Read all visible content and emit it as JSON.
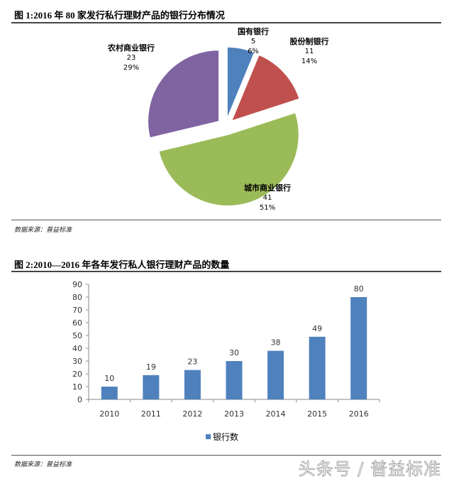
{
  "figure1": {
    "title": "图 1:2016 年 80 家发行私行理财产品的银行分布情况",
    "source": "数据来源：普益标准"
  },
  "figure2": {
    "title": "图 2:2010—2016 年各年发行私人银行理财产品的数量",
    "source": "数据来源：普益标准",
    "legend": "银行数"
  },
  "watermark": "头条号 / 普益标准",
  "chart_data": [
    {
      "type": "pie",
      "title": "图 1:2016 年 80 家发行私行理财产品的银行分布情况",
      "categories": [
        "国有银行",
        "股份制银行",
        "城市商业银行",
        "农村商业银行"
      ],
      "values": [
        5,
        11,
        41,
        23
      ],
      "percents": [
        "6%",
        "14%",
        "51%",
        "29%"
      ],
      "colors": [
        "#4F81BD",
        "#C0504D",
        "#9BBB59",
        "#8064A2"
      ],
      "exploded": true
    },
    {
      "type": "bar",
      "title": "图 2:2010—2016 年各年发行私人银行理财产品的数量",
      "categories": [
        "2010",
        "2011",
        "2012",
        "2013",
        "2014",
        "2015",
        "2016"
      ],
      "series": [
        {
          "name": "银行数",
          "values": [
            10,
            19,
            23,
            30,
            38,
            49,
            80
          ],
          "color": "#4F81BD"
        }
      ],
      "ylim": [
        0,
        90
      ],
      "yticks": [
        "0",
        "10",
        "20",
        "30",
        "40",
        "50",
        "60",
        "70",
        "80",
        "90"
      ],
      "xlabel": "",
      "ylabel": "",
      "legend_position": "bottom",
      "grid": false,
      "data_labels": true
    }
  ]
}
